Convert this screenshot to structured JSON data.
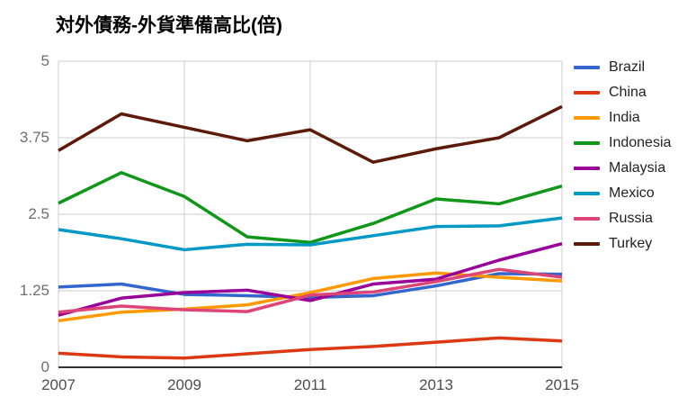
{
  "chart_data": {
    "type": "line",
    "title": "対外債務-外貨準備高比(倍)",
    "x": [
      2007,
      2008,
      2009,
      2010,
      2011,
      2012,
      2013,
      2014,
      2015
    ],
    "x_tick_labels": [
      "2007",
      "2009",
      "2011",
      "2013",
      "2015"
    ],
    "x_tick_indices": [
      0,
      2,
      4,
      6,
      8
    ],
    "y_ticks": [
      0,
      1.25,
      2.5,
      3.75,
      5
    ],
    "y_tick_labels": [
      "0",
      "1.25",
      "2.5",
      "3.75",
      "5"
    ],
    "ylim": [
      0,
      5
    ],
    "grid": true,
    "legend_position": "right",
    "series": [
      {
        "name": "Brazil",
        "color": "#3366CC",
        "values": [
          1.31,
          1.36,
          1.19,
          1.17,
          1.14,
          1.17,
          1.33,
          1.53,
          1.52
        ]
      },
      {
        "name": "China",
        "color": "#DC3912",
        "values": [
          0.23,
          0.17,
          0.15,
          0.22,
          0.29,
          0.34,
          0.41,
          0.48,
          0.43
        ]
      },
      {
        "name": "India",
        "color": "#FF9900",
        "values": [
          0.76,
          0.9,
          0.95,
          1.02,
          1.22,
          1.45,
          1.54,
          1.47,
          1.41
        ]
      },
      {
        "name": "Indonesia",
        "color": "#109618",
        "values": [
          2.68,
          3.18,
          2.79,
          2.13,
          2.04,
          2.35,
          2.75,
          2.67,
          2.96
        ]
      },
      {
        "name": "Malaysia",
        "color": "#990099",
        "values": [
          0.85,
          1.13,
          1.22,
          1.26,
          1.09,
          1.36,
          1.44,
          1.75,
          2.02
        ]
      },
      {
        "name": "Mexico",
        "color": "#0099C6",
        "values": [
          2.25,
          2.1,
          1.92,
          2.01,
          2.0,
          2.15,
          2.3,
          2.31,
          2.44
        ]
      },
      {
        "name": "Russia",
        "color": "#DD4477",
        "values": [
          0.9,
          1.0,
          0.94,
          0.91,
          1.18,
          1.23,
          1.4,
          1.6,
          1.47
        ]
      },
      {
        "name": "Turkey",
        "color": "#5E1A09",
        "values": [
          3.54,
          4.14,
          3.92,
          3.7,
          3.88,
          3.35,
          3.57,
          3.75,
          4.26
        ]
      }
    ]
  }
}
